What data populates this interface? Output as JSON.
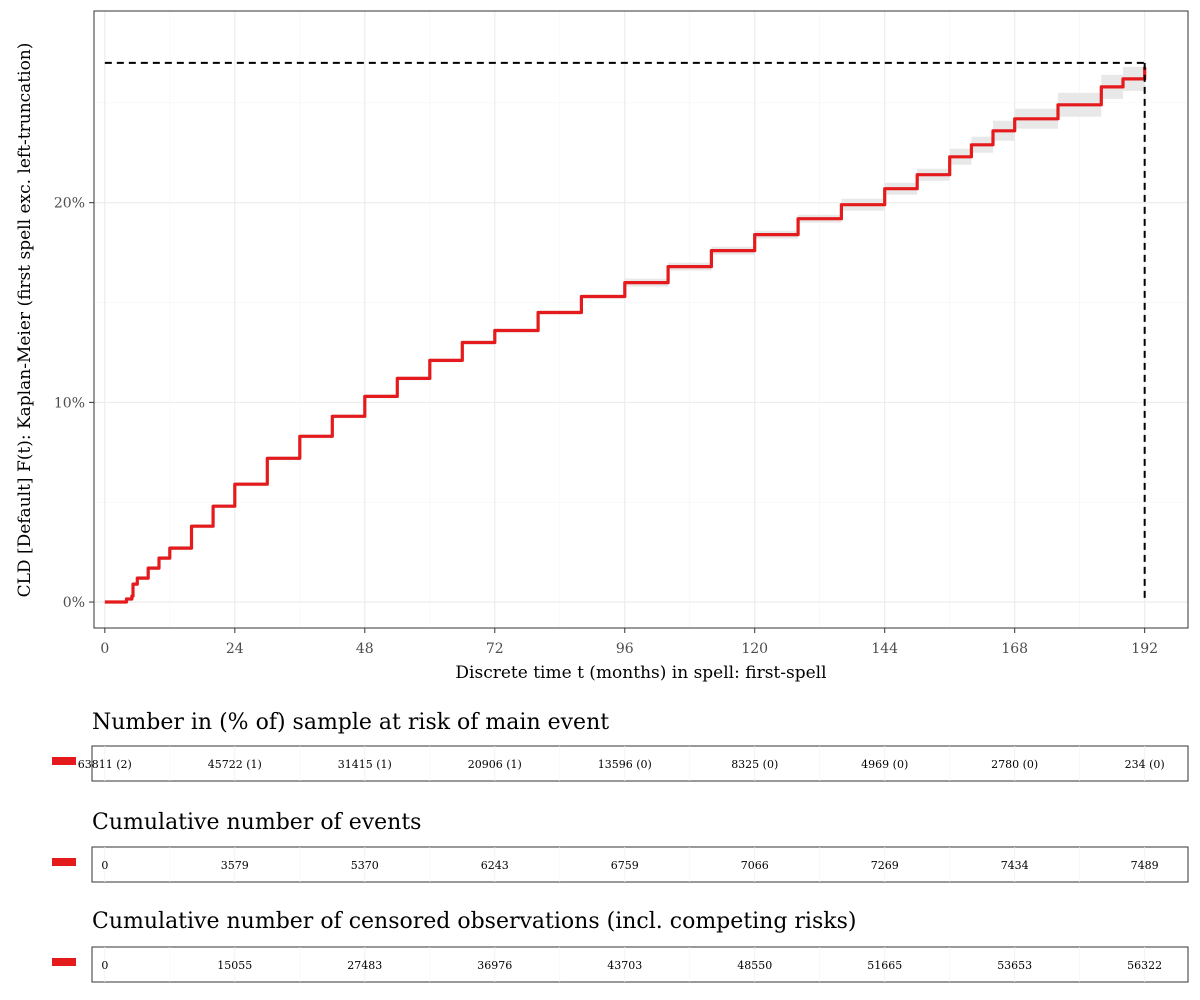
{
  "chart_data": {
    "type": "line",
    "xlabel": "Discrete time t (months) in spell: first-spell",
    "ylabel": "CLD [Default] F(t): Kaplan-Meier (first spell exc. left-truncation)",
    "xlim": [
      -2,
      200
    ],
    "ylim": [
      -0.013,
      0.296
    ],
    "x_ticks": [
      0,
      24,
      48,
      72,
      96,
      120,
      144,
      168,
      192
    ],
    "x_tick_labels": [
      "0",
      "24",
      "48",
      "72",
      "96",
      "120",
      "144",
      "168",
      "192"
    ],
    "y_ticks": [
      0,
      0.1,
      0.2
    ],
    "y_tick_labels": [
      "0%",
      "10%",
      "20%"
    ],
    "grid": true,
    "colors": {
      "series": "#e41a1c",
      "band": "#e8e8e8",
      "reference": "#000000"
    },
    "series": [
      {
        "x": [
          0,
          2,
          4,
          5,
          5.2,
          6,
          8,
          10,
          12,
          16,
          20,
          24,
          30,
          36,
          42,
          48,
          54,
          60,
          66,
          72,
          80,
          88,
          96,
          104,
          112,
          120,
          128,
          136,
          144,
          150,
          156,
          160,
          164,
          168,
          176,
          184,
          188,
          192
        ],
        "y": [
          0,
          0,
          0.0015,
          0.003,
          0.009,
          0.012,
          0.017,
          0.022,
          0.027,
          0.038,
          0.048,
          0.059,
          0.072,
          0.083,
          0.093,
          0.103,
          0.112,
          0.121,
          0.13,
          0.136,
          0.145,
          0.153,
          0.16,
          0.168,
          0.176,
          0.184,
          0.192,
          0.199,
          0.207,
          0.214,
          0.223,
          0.229,
          0.236,
          0.242,
          0.249,
          0.258,
          0.262,
          0.268
        ],
        "lower": [
          0,
          0,
          0.001,
          0.002,
          0.008,
          0.011,
          0.016,
          0.021,
          0.026,
          0.037,
          0.047,
          0.058,
          0.071,
          0.082,
          0.092,
          0.102,
          0.111,
          0.12,
          0.129,
          0.135,
          0.144,
          0.152,
          0.158,
          0.166,
          0.174,
          0.182,
          0.19,
          0.196,
          0.204,
          0.211,
          0.219,
          0.225,
          0.231,
          0.237,
          0.243,
          0.252,
          0.256,
          0.259
        ],
        "upper": [
          0,
          0,
          0.002,
          0.004,
          0.01,
          0.013,
          0.018,
          0.023,
          0.028,
          0.039,
          0.049,
          0.06,
          0.073,
          0.084,
          0.094,
          0.104,
          0.113,
          0.122,
          0.131,
          0.137,
          0.146,
          0.154,
          0.162,
          0.17,
          0.178,
          0.186,
          0.194,
          0.202,
          0.21,
          0.217,
          0.227,
          0.233,
          0.241,
          0.247,
          0.255,
          0.264,
          0.268,
          0.28
        ]
      }
    ],
    "reference_lines": {
      "y": 0.27,
      "x": 192
    }
  },
  "risk_tables": [
    {
      "title": "Number in (% of) sample at risk of main event",
      "values": [
        "63811 (2)",
        "45722 (1)",
        "31415 (1)",
        "20906 (1)",
        "13596 (0)",
        "8325 (0)",
        "4969 (0)",
        "2780 (0)",
        "234 (0)"
      ]
    },
    {
      "title": "Cumulative number of events",
      "values": [
        "0",
        "3579",
        "5370",
        "6243",
        "6759",
        "7066",
        "7269",
        "7434",
        "7489"
      ]
    },
    {
      "title": "Cumulative number of censored observations (incl. competing risks)",
      "values": [
        "0",
        "15055",
        "27483",
        "36976",
        "43703",
        "48550",
        "51665",
        "53653",
        "56322"
      ]
    }
  ]
}
